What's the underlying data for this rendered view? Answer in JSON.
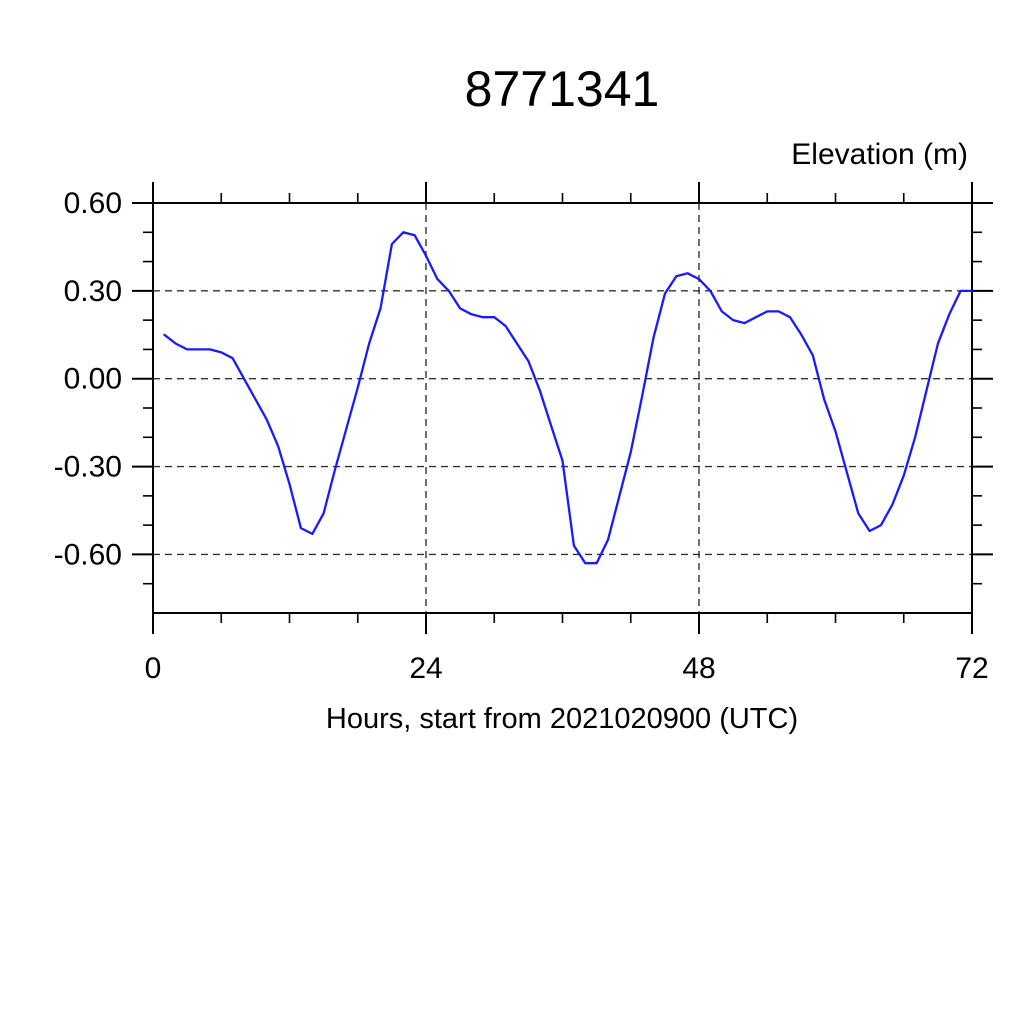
{
  "page": {
    "background_color": "#ffffff"
  },
  "chart_data": {
    "type": "line",
    "title": "8771341",
    "ylabel": "Elevation (m)",
    "xlabel": "Hours, start from 2021020900 (UTC)",
    "legend": "none",
    "grid": "dashed",
    "line_color": "#1a1aff",
    "axis_color": "#000000",
    "grid_color": "#333333",
    "xlim": [
      0,
      72
    ],
    "ylim": [
      -0.8,
      0.6
    ],
    "x_major_ticks": [
      0,
      24,
      48,
      72
    ],
    "x_tick_labels": [
      "0",
      "24",
      "48",
      "72"
    ],
    "x_minor_ticks": [
      6,
      12,
      18,
      30,
      36,
      42,
      54,
      60,
      66
    ],
    "y_major_ticks": [
      0.6,
      0.3,
      0.0,
      -0.3,
      -0.6
    ],
    "y_tick_labels": [
      "0.60",
      "0.30",
      "0.00",
      "-0.30",
      "-0.60"
    ],
    "y_minor_ticks": [
      0.5,
      0.4,
      0.2,
      0.1,
      -0.1,
      -0.2,
      -0.4,
      -0.5,
      -0.7
    ],
    "x_gridlines": [
      24,
      48
    ],
    "y_gridlines": [
      0.3,
      0.0,
      -0.3,
      -0.6
    ],
    "hours": [
      1,
      2,
      3,
      4,
      5,
      6,
      7,
      8,
      9,
      10,
      11,
      12,
      13,
      14,
      15,
      16,
      17,
      18,
      19,
      20,
      21,
      22,
      23,
      24,
      25,
      26,
      27,
      28,
      29,
      30,
      31,
      32,
      33,
      34,
      35,
      36,
      37,
      38,
      39,
      40,
      41,
      42,
      43,
      44,
      45,
      46,
      47,
      48,
      49,
      50,
      51,
      52,
      53,
      54,
      55,
      56,
      57,
      58,
      59,
      60,
      61,
      62,
      63,
      64,
      65,
      66,
      67,
      68,
      69,
      70,
      71,
      72
    ],
    "elevations": [
      0.15,
      0.12,
      0.1,
      0.1,
      0.1,
      0.09,
      0.07,
      0.0,
      -0.07,
      -0.14,
      -0.23,
      -0.36,
      -0.51,
      -0.53,
      -0.46,
      -0.31,
      -0.17,
      -0.03,
      0.12,
      0.24,
      0.46,
      0.5,
      0.49,
      0.42,
      0.34,
      0.3,
      0.24,
      0.22,
      0.21,
      0.21,
      0.18,
      0.12,
      0.06,
      -0.04,
      -0.16,
      -0.28,
      -0.57,
      -0.63,
      -0.63,
      -0.55,
      -0.4,
      -0.25,
      -0.06,
      0.14,
      0.29,
      0.35,
      0.36,
      0.34,
      0.3,
      0.23,
      0.2,
      0.19,
      0.21,
      0.23,
      0.23,
      0.21,
      0.15,
      0.08,
      -0.07,
      -0.18,
      -0.32,
      -0.46,
      -0.52,
      -0.5,
      -0.43,
      -0.33,
      -0.2,
      -0.04,
      0.12,
      0.22,
      0.3,
      0.3
    ]
  }
}
